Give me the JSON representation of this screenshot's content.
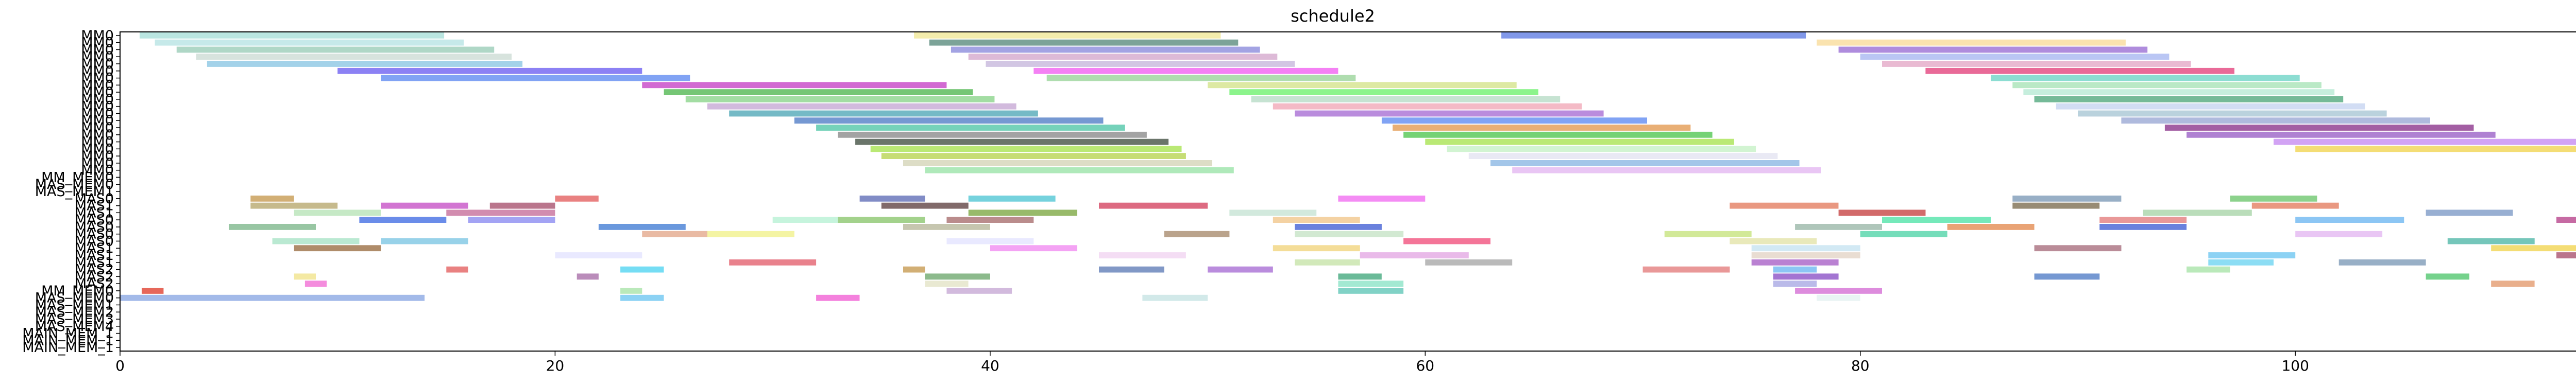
{
  "chart_data": {
    "type": "gantt",
    "title": "schedule2",
    "xlabel": "",
    "ylabel": "",
    "xlim": [
      0,
      117
    ],
    "xticks": [
      0,
      20,
      40,
      60,
      80,
      100
    ],
    "grid": false,
    "rows": [
      "MM0",
      "MM0",
      "MM0",
      "MM0",
      "MM0",
      "MM0",
      "MM0",
      "MM0",
      "MM0",
      "MM0",
      "MM0",
      "MM0",
      "MM0",
      "MM0",
      "MM0",
      "MM0",
      "MM0",
      "MM0",
      "MM0",
      "MM0",
      "MM_MEM0",
      "MAS_MEM0",
      "MAS_MEM1",
      "MAS0",
      "MAS1",
      "MAS1",
      "MAS0",
      "MAS0",
      "MAS0",
      "MAS0",
      "MAS1",
      "MAS1",
      "MAS1",
      "MAS2",
      "MAS2",
      "MAS2",
      "MM_MEM0",
      "MAS_MEM0",
      "MAS_MEM1",
      "MAS_MEM2",
      "MAS_MEM3",
      "MAS_MEM4",
      "MAIN_MEM_1",
      "MAIN_MEM_1",
      "MAIN_MEM_1"
    ],
    "colors": [
      "#8fd3cf",
      "#6b7fe0",
      "#d4a020",
      "#4aa0c8",
      "#e060c0",
      "#a0e070",
      "#7080ff",
      "#c0c0c0",
      "#e05050",
      "#50c050",
      "#9060d0",
      "#f0a040",
      "#60d0d0",
      "#d070d0",
      "#b0b060",
      "#808080",
      "#ff8080",
      "#80c0ff",
      "#ffd060",
      "#40a060",
      "#f060a0",
      "#a0a0ff",
      "#c08040",
      "#60e0a0"
    ],
    "tasks": [
      {
        "row": 0,
        "start": 0.9,
        "end": 14.9,
        "color": "#9fdcd6"
      },
      {
        "row": 0,
        "start": 36.5,
        "end": 50.6,
        "color": "#f0e68c"
      },
      {
        "row": 0,
        "start": 63.5,
        "end": 77.5,
        "color": "#5070e0"
      },
      {
        "row": 1,
        "start": 1.6,
        "end": 15.8,
        "color": "#b0e0e0"
      },
      {
        "row": 1,
        "start": 37.2,
        "end": 51.4,
        "color": "#4a8070"
      },
      {
        "row": 1,
        "start": 78.0,
        "end": 92.2,
        "color": "#f8d890"
      },
      {
        "row": 2,
        "start": 2.6,
        "end": 17.2,
        "color": "#90c8b0"
      },
      {
        "row": 2,
        "start": 38.2,
        "end": 52.4,
        "color": "#8080d8"
      },
      {
        "row": 2,
        "start": 79.0,
        "end": 93.2,
        "color": "#9060d0"
      },
      {
        "row": 3,
        "start": 3.5,
        "end": 18.0,
        "color": "#c8d8d0"
      },
      {
        "row": 3,
        "start": 39.0,
        "end": 53.2,
        "color": "#d0a0c8"
      },
      {
        "row": 3,
        "start": 80.0,
        "end": 94.2,
        "color": "#a0b0f0"
      },
      {
        "row": 4,
        "start": 4.0,
        "end": 18.5,
        "color": "#80c0e0"
      },
      {
        "row": 4,
        "start": 39.8,
        "end": 54.0,
        "color": "#c0b0d8"
      },
      {
        "row": 4,
        "start": 81.0,
        "end": 95.2,
        "color": "#e0a0c0"
      },
      {
        "row": 5,
        "start": 10.0,
        "end": 24.0,
        "color": "#6050f0"
      },
      {
        "row": 5,
        "start": 42.0,
        "end": 56.0,
        "color": "#f050f0"
      },
      {
        "row": 5,
        "start": 83.0,
        "end": 97.2,
        "color": "#e03070"
      },
      {
        "row": 6,
        "start": 12.0,
        "end": 26.2,
        "color": "#5080f0"
      },
      {
        "row": 6,
        "start": 42.6,
        "end": 56.8,
        "color": "#90d090"
      },
      {
        "row": 6,
        "start": 86.0,
        "end": 100.2,
        "color": "#60d0c0"
      },
      {
        "row": 7,
        "start": 24.0,
        "end": 38.0,
        "color": "#c030c0"
      },
      {
        "row": 7,
        "start": 50.0,
        "end": 64.2,
        "color": "#d0e080"
      },
      {
        "row": 7,
        "start": 87.0,
        "end": 101.2,
        "color": "#a0e0b0"
      },
      {
        "row": 8,
        "start": 25.0,
        "end": 39.2,
        "color": "#40b040"
      },
      {
        "row": 8,
        "start": 51.0,
        "end": 65.2,
        "color": "#60f060"
      },
      {
        "row": 8,
        "start": 87.5,
        "end": 101.8,
        "color": "#b0e8d0"
      },
      {
        "row": 9,
        "start": 26.0,
        "end": 40.2,
        "color": "#80d080"
      },
      {
        "row": 9,
        "start": 52.0,
        "end": 66.2,
        "color": "#b0d8c0"
      },
      {
        "row": 9,
        "start": 88.0,
        "end": 102.2,
        "color": "#40a070"
      },
      {
        "row": 10,
        "start": 27.0,
        "end": 41.2,
        "color": "#c0a0d0"
      },
      {
        "row": 10,
        "start": 53.0,
        "end": 67.2,
        "color": "#f0a0b0"
      },
      {
        "row": 10,
        "start": 89.0,
        "end": 103.2,
        "color": "#c0d0f0"
      },
      {
        "row": 11,
        "start": 28.0,
        "end": 42.2,
        "color": "#40a0b0"
      },
      {
        "row": 11,
        "start": 54.0,
        "end": 68.2,
        "color": "#a060d0"
      },
      {
        "row": 11,
        "start": 90.0,
        "end": 104.2,
        "color": "#a0c0d0"
      },
      {
        "row": 12,
        "start": 31.0,
        "end": 45.2,
        "color": "#4070c0"
      },
      {
        "row": 12,
        "start": 58.0,
        "end": 70.2,
        "color": "#5080f0"
      },
      {
        "row": 12,
        "start": 92.0,
        "end": 106.2,
        "color": "#90a0d0"
      },
      {
        "row": 13,
        "start": 32.0,
        "end": 46.2,
        "color": "#40c0a0"
      },
      {
        "row": 13,
        "start": 58.5,
        "end": 72.2,
        "color": "#e09040"
      },
      {
        "row": 13,
        "start": 94.0,
        "end": 108.2,
        "color": "#802080"
      },
      {
        "row": 14,
        "start": 33.0,
        "end": 47.2,
        "color": "#808080"
      },
      {
        "row": 14,
        "start": 59.0,
        "end": 73.2,
        "color": "#40c040"
      },
      {
        "row": 14,
        "start": 95.0,
        "end": 109.2,
        "color": "#9050c0"
      },
      {
        "row": 15,
        "start": 33.8,
        "end": 48.2,
        "color": "#304030"
      },
      {
        "row": 15,
        "start": 60.0,
        "end": 74.2,
        "color": "#a0e040"
      },
      {
        "row": 15,
        "start": 99.0,
        "end": 113.2,
        "color": "#c080f0"
      },
      {
        "row": 16,
        "start": 34.5,
        "end": 48.8,
        "color": "#a0e040"
      },
      {
        "row": 16,
        "start": 61.0,
        "end": 75.2,
        "color": "#c0f0c0"
      },
      {
        "row": 16,
        "start": 100.0,
        "end": 114.2,
        "color": "#f0d040"
      },
      {
        "row": 17,
        "start": 35.0,
        "end": 49.0,
        "color": "#b0d040"
      },
      {
        "row": 17,
        "start": 62.0,
        "end": 76.2,
        "color": "#e0e0f0"
      },
      {
        "row": 18,
        "start": 36.0,
        "end": 50.2,
        "color": "#d0d0b0"
      },
      {
        "row": 18,
        "start": 63.0,
        "end": 77.2,
        "color": "#80b0e0"
      },
      {
        "row": 19,
        "start": 37.0,
        "end": 51.2,
        "color": "#90e0a0"
      },
      {
        "row": 19,
        "start": 64.0,
        "end": 78.2,
        "color": "#e0b0f0"
      },
      {
        "row": 23,
        "start": 6.0,
        "end": 8.0,
        "color": "#c09040"
      },
      {
        "row": 23,
        "start": 20.0,
        "end": 22.0,
        "color": "#e05050"
      },
      {
        "row": 23,
        "start": 34.0,
        "end": 37.0,
        "color": "#5060b0"
      },
      {
        "row": 23,
        "start": 39.0,
        "end": 43.0,
        "color": "#40c0d0"
      },
      {
        "row": 23,
        "start": 56.0,
        "end": 60.0,
        "color": "#f060f0"
      },
      {
        "row": 23,
        "start": 87.0,
        "end": 92.0,
        "color": "#7090b0"
      },
      {
        "row": 23,
        "start": 97.0,
        "end": 101.0,
        "color": "#60c060"
      },
      {
        "row": 23,
        "start": 113.0,
        "end": 117.0,
        "color": "#a070b0"
      },
      {
        "row": 24,
        "start": 6.0,
        "end": 10.0,
        "color": "#b0a060"
      },
      {
        "row": 24,
        "start": 12.0,
        "end": 16.0,
        "color": "#c040c0"
      },
      {
        "row": 24,
        "start": 17.0,
        "end": 20.0,
        "color": "#a04060"
      },
      {
        "row": 24,
        "start": 35.0,
        "end": 39.0,
        "color": "#503030"
      },
      {
        "row": 24,
        "start": 45.0,
        "end": 50.0,
        "color": "#d03050"
      },
      {
        "row": 24,
        "start": 74.0,
        "end": 79.0,
        "color": "#e07050"
      },
      {
        "row": 24,
        "start": 87.0,
        "end": 91.0,
        "color": "#706040"
      },
      {
        "row": 24,
        "start": 98.0,
        "end": 102.0,
        "color": "#e07050"
      },
      {
        "row": 25,
        "start": 8.0,
        "end": 12.0,
        "color": "#b0e0b0"
      },
      {
        "row": 25,
        "start": 15.0,
        "end": 20.0,
        "color": "#c06090"
      },
      {
        "row": 25,
        "start": 39.0,
        "end": 44.0,
        "color": "#70a030"
      },
      {
        "row": 25,
        "start": 51.0,
        "end": 55.0,
        "color": "#c0e0d0"
      },
      {
        "row": 25,
        "start": 79.0,
        "end": 83.0,
        "color": "#c03030"
      },
      {
        "row": 25,
        "start": 93.0,
        "end": 98.0,
        "color": "#a0d0a0"
      },
      {
        "row": 25,
        "start": 106.0,
        "end": 110.0,
        "color": "#7090c0"
      },
      {
        "row": 26,
        "start": 11.0,
        "end": 15.0,
        "color": "#3060e0"
      },
      {
        "row": 26,
        "start": 16.0,
        "end": 20.0,
        "color": "#8080f0"
      },
      {
        "row": 26,
        "start": 30.0,
        "end": 33.0,
        "color": "#b0f0d0"
      },
      {
        "row": 26,
        "start": 33.0,
        "end": 37.0,
        "color": "#80c060"
      },
      {
        "row": 26,
        "start": 38.0,
        "end": 42.0,
        "color": "#a06060"
      },
      {
        "row": 26,
        "start": 53.0,
        "end": 57.0,
        "color": "#f0c080"
      },
      {
        "row": 26,
        "start": 81.0,
        "end": 86.0,
        "color": "#40e0a0"
      },
      {
        "row": 26,
        "start": 91.0,
        "end": 95.0,
        "color": "#e07070"
      },
      {
        "row": 26,
        "start": 100.0,
        "end": 105.0,
        "color": "#60b0f0"
      },
      {
        "row": 26,
        "start": 112.0,
        "end": 116.0,
        "color": "#b03080"
      },
      {
        "row": 27,
        "start": 5.0,
        "end": 9.0,
        "color": "#70b080"
      },
      {
        "row": 27,
        "start": 22.0,
        "end": 26.0,
        "color": "#3070d0"
      },
      {
        "row": 27,
        "start": 36.0,
        "end": 40.0,
        "color": "#b0b090"
      },
      {
        "row": 27,
        "start": 54.0,
        "end": 58.0,
        "color": "#3050d0"
      },
      {
        "row": 27,
        "start": 77.0,
        "end": 81.0,
        "color": "#90b0a0"
      },
      {
        "row": 27,
        "start": 84.0,
        "end": 88.0,
        "color": "#e08040"
      },
      {
        "row": 27,
        "start": 91.0,
        "end": 95.0,
        "color": "#3050d0"
      },
      {
        "row": 28,
        "start": 24.0,
        "end": 27.0,
        "color": "#e0a080"
      },
      {
        "row": 28,
        "start": 27.0,
        "end": 31.0,
        "color": "#f0f080"
      },
      {
        "row": 28,
        "start": 48.0,
        "end": 51.0,
        "color": "#a08060"
      },
      {
        "row": 28,
        "start": 54.0,
        "end": 59.0,
        "color": "#c0e0c0"
      },
      {
        "row": 28,
        "start": 71.0,
        "end": 75.0,
        "color": "#c0e070"
      },
      {
        "row": 28,
        "start": 80.0,
        "end": 84.0,
        "color": "#40d0a0"
      },
      {
        "row": 28,
        "start": 100.0,
        "end": 104.0,
        "color": "#e0b0f0"
      },
      {
        "row": 29,
        "start": 7.0,
        "end": 11.0,
        "color": "#a0e0c0"
      },
      {
        "row": 29,
        "start": 12.0,
        "end": 16.0,
        "color": "#70c0e0"
      },
      {
        "row": 29,
        "start": 38.0,
        "end": 42.0,
        "color": "#e0e0ff"
      },
      {
        "row": 29,
        "start": 59.0,
        "end": 63.0,
        "color": "#f04070"
      },
      {
        "row": 29,
        "start": 74.0,
        "end": 78.0,
        "color": "#e0e0a0"
      },
      {
        "row": 29,
        "start": 107.0,
        "end": 111.0,
        "color": "#40b0a0"
      },
      {
        "row": 30,
        "start": 8.0,
        "end": 12.0,
        "color": "#906030"
      },
      {
        "row": 30,
        "start": 40.0,
        "end": 44.0,
        "color": "#f080f0"
      },
      {
        "row": 30,
        "start": 53.0,
        "end": 57.0,
        "color": "#f0d070"
      },
      {
        "row": 30,
        "start": 75.0,
        "end": 80.0,
        "color": "#c0e0f0"
      },
      {
        "row": 30,
        "start": 88.0,
        "end": 92.0,
        "color": "#a06070"
      },
      {
        "row": 30,
        "start": 109.0,
        "end": 113.0,
        "color": "#f0d040"
      },
      {
        "row": 31,
        "start": 20.0,
        "end": 24.0,
        "color": "#e0e0ff"
      },
      {
        "row": 31,
        "start": 45.0,
        "end": 49.0,
        "color": "#f0d0f0"
      },
      {
        "row": 31,
        "start": 57.0,
        "end": 62.0,
        "color": "#e0a0e0"
      },
      {
        "row": 31,
        "start": 75.0,
        "end": 80.0,
        "color": "#e0d0c0"
      },
      {
        "row": 31,
        "start": 96.0,
        "end": 100.0,
        "color": "#60c0f0"
      },
      {
        "row": 31,
        "start": 112.0,
        "end": 116.0,
        "color": "#a04060"
      },
      {
        "row": 32,
        "start": 28.0,
        "end": 32.0,
        "color": "#e05060"
      },
      {
        "row": 32,
        "start": 54.0,
        "end": 57.0,
        "color": "#c0e0a0"
      },
      {
        "row": 32,
        "start": 60.0,
        "end": 64.0,
        "color": "#a0a0a0"
      },
      {
        "row": 32,
        "start": 75.0,
        "end": 79.0,
        "color": "#a050c0"
      },
      {
        "row": 32,
        "start": 96.0,
        "end": 99.0,
        "color": "#60d0f0"
      },
      {
        "row": 32,
        "start": 102.0,
        "end": 106.0,
        "color": "#7090b0"
      },
      {
        "row": 33,
        "start": 15.0,
        "end": 16.0,
        "color": "#e05050"
      },
      {
        "row": 33,
        "start": 23.0,
        "end": 25.0,
        "color": "#40d0f0"
      },
      {
        "row": 33,
        "start": 36.0,
        "end": 37.0,
        "color": "#c09040"
      },
      {
        "row": 33,
        "start": 45.0,
        "end": 48.0,
        "color": "#5070b0"
      },
      {
        "row": 33,
        "start": 50.0,
        "end": 53.0,
        "color": "#a060d0"
      },
      {
        "row": 33,
        "start": 70.0,
        "end": 74.0,
        "color": "#e07070"
      },
      {
        "row": 33,
        "start": 76.0,
        "end": 78.0,
        "color": "#60b0f0"
      },
      {
        "row": 33,
        "start": 95.0,
        "end": 97.0,
        "color": "#a0e0a0"
      },
      {
        "row": 34,
        "start": 8.0,
        "end": 9.0,
        "color": "#f0e080"
      },
      {
        "row": 34,
        "start": 21.0,
        "end": 22.0,
        "color": "#a060a0"
      },
      {
        "row": 34,
        "start": 37.0,
        "end": 40.0,
        "color": "#60a060"
      },
      {
        "row": 34,
        "start": 56.0,
        "end": 58.0,
        "color": "#30a070"
      },
      {
        "row": 34,
        "start": 76.0,
        "end": 79.0,
        "color": "#8040c0"
      },
      {
        "row": 34,
        "start": 88.0,
        "end": 91.0,
        "color": "#4070c0"
      },
      {
        "row": 34,
        "start": 106.0,
        "end": 108.0,
        "color": "#40c060"
      },
      {
        "row": 35,
        "start": 8.5,
        "end": 9.5,
        "color": "#f060d0"
      },
      {
        "row": 35,
        "start": 37.0,
        "end": 39.0,
        "color": "#e0e0c0"
      },
      {
        "row": 35,
        "start": 56.0,
        "end": 59.0,
        "color": "#80e0c0"
      },
      {
        "row": 35,
        "start": 76.0,
        "end": 78.0,
        "color": "#a0a0e0"
      },
      {
        "row": 35,
        "start": 109.0,
        "end": 111.0,
        "color": "#e09060"
      },
      {
        "row": 36,
        "start": 1.0,
        "end": 2.0,
        "color": "#f08040"
      },
      {
        "row": 36,
        "start": 1.0,
        "end": 2.0,
        "color": "#e05050"
      },
      {
        "row": 36,
        "start": 23.0,
        "end": 24.0,
        "color": "#a0e0a0"
      },
      {
        "row": 36,
        "start": 38.0,
        "end": 41.0,
        "color": "#c0a0d0"
      },
      {
        "row": 36,
        "start": 56.0,
        "end": 59.0,
        "color": "#50c0b0"
      },
      {
        "row": 36,
        "start": 77.0,
        "end": 81.0,
        "color": "#d060d0"
      },
      {
        "row": 36,
        "start": 115.0,
        "end": 116.0,
        "color": "#a0e060"
      },
      {
        "row": 37,
        "start": 0.0,
        "end": 14.0,
        "color": "#80a0e0"
      },
      {
        "row": 37,
        "start": 23.0,
        "end": 25.0,
        "color": "#60c0f0"
      },
      {
        "row": 37,
        "start": 32.0,
        "end": 34.0,
        "color": "#f050d0"
      },
      {
        "row": 37,
        "start": 47.0,
        "end": 50.0,
        "color": "#c0e0e0"
      },
      {
        "row": 37,
        "start": 78.0,
        "end": 80.0,
        "color": "#e0f0f0"
      }
    ]
  }
}
